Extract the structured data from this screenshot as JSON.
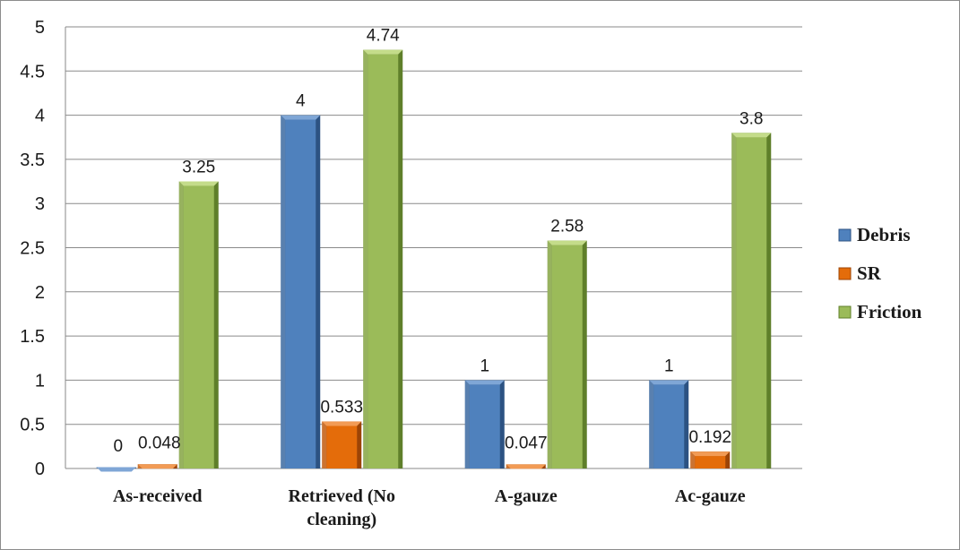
{
  "chart_data": {
    "type": "bar",
    "categories": [
      [
        "As-received"
      ],
      [
        "Retrieved (No",
        "cleaning)"
      ],
      [
        "A-gauze"
      ],
      [
        "Ac-gauze"
      ]
    ],
    "series": [
      {
        "name": "Debris",
        "values": [
          0,
          4,
          1,
          1
        ],
        "labels": [
          "0",
          "4",
          "1",
          "1"
        ],
        "color": "#4f81bd",
        "dark": "#2c5282",
        "light": "#7fa6d6"
      },
      {
        "name": "SR",
        "values": [
          0.048,
          0.533,
          0.047,
          0.192
        ],
        "labels": [
          "0.048",
          "0.533",
          "0.047",
          "0.192"
        ],
        "color": "#e46c0a",
        "dark": "#9c4406",
        "light": "#f29b55"
      },
      {
        "name": "Friction",
        "values": [
          3.25,
          4.74,
          2.58,
          3.8
        ],
        "labels": [
          "3.25",
          "4.74",
          "2.58",
          "3.8"
        ],
        "color": "#9bbb59",
        "dark": "#5f7f2a",
        "light": "#c4dc8a"
      }
    ],
    "yticks": [
      "0",
      "0.5",
      "1",
      "1.5",
      "2",
      "2.5",
      "3",
      "3.5",
      "4",
      "4.5",
      "5"
    ],
    "ylim": [
      0,
      5
    ],
    "grid": true,
    "legend_position": "right"
  }
}
